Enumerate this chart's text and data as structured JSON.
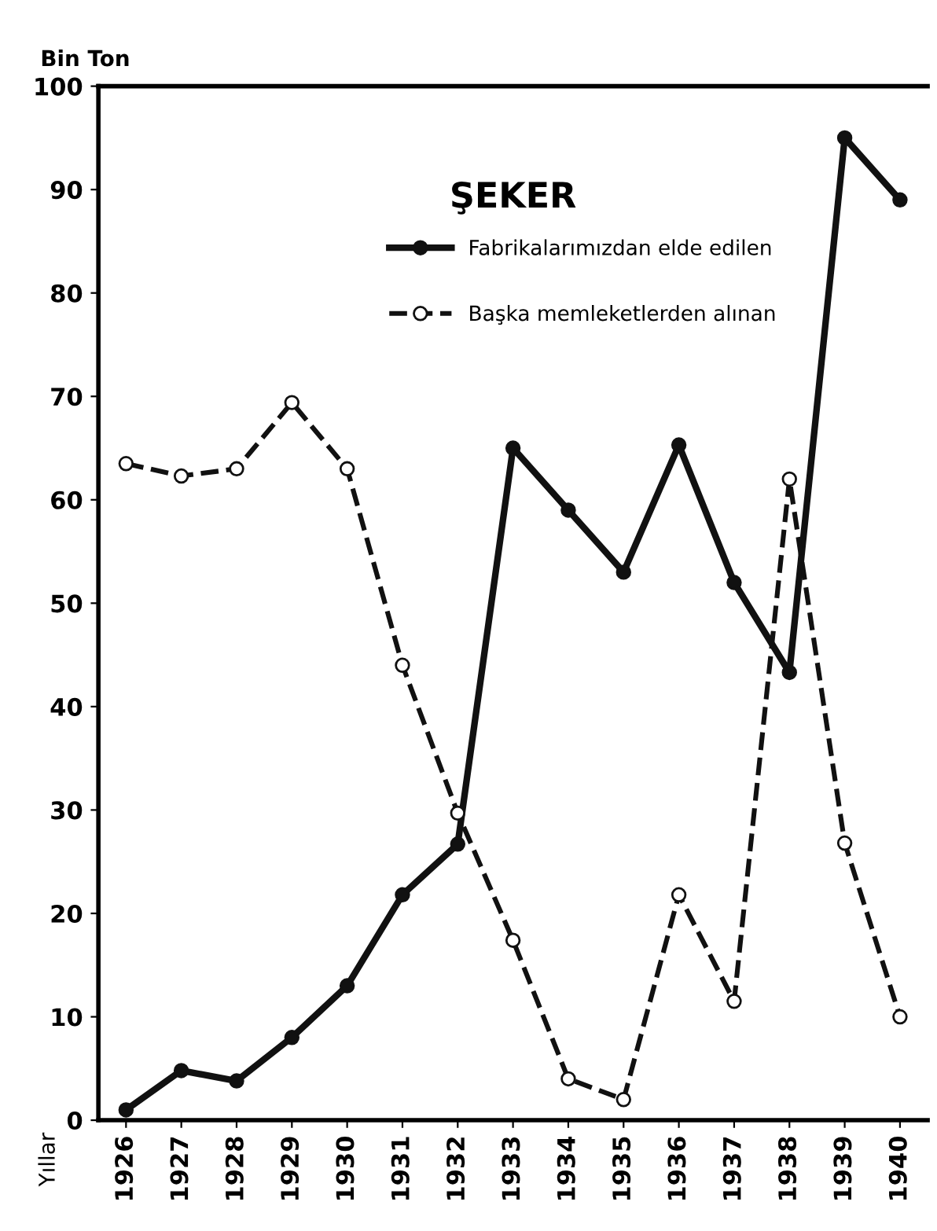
{
  "chart_data": {
    "type": "line",
    "title": "ŞEKER",
    "ylabel": "Bin Ton",
    "annotations": [
      "Yıllar"
    ],
    "categories": [
      "1926",
      "1927",
      "1928",
      "1929",
      "1930",
      "1931",
      "1932",
      "1933",
      "1934",
      "1935",
      "1936",
      "1937",
      "1938",
      "1939",
      "1940"
    ],
    "series": [
      {
        "name": "Fabrikalarımızdan elde edilen",
        "color": "#111111",
        "line_style": "solid",
        "values": [
          1,
          4.8,
          3.8,
          8,
          13,
          21.8,
          26.7,
          65,
          59,
          53,
          65.3,
          52,
          43.3,
          95,
          89
        ]
      },
      {
        "name": "Başka memleketlerden alınan",
        "color": "#111111",
        "line_style": "dashed",
        "values": [
          63.5,
          62.3,
          63,
          69.4,
          63,
          44,
          29.7,
          17.4,
          4,
          2,
          21.8,
          11.5,
          62,
          26.8,
          10
        ]
      }
    ],
    "ylim": [
      0,
      100
    ],
    "yticks": [
      0,
      10,
      20,
      30,
      40,
      50,
      60,
      70,
      80,
      90,
      100
    ],
    "grid": false,
    "legend": "top right",
    "marker": "circle"
  }
}
